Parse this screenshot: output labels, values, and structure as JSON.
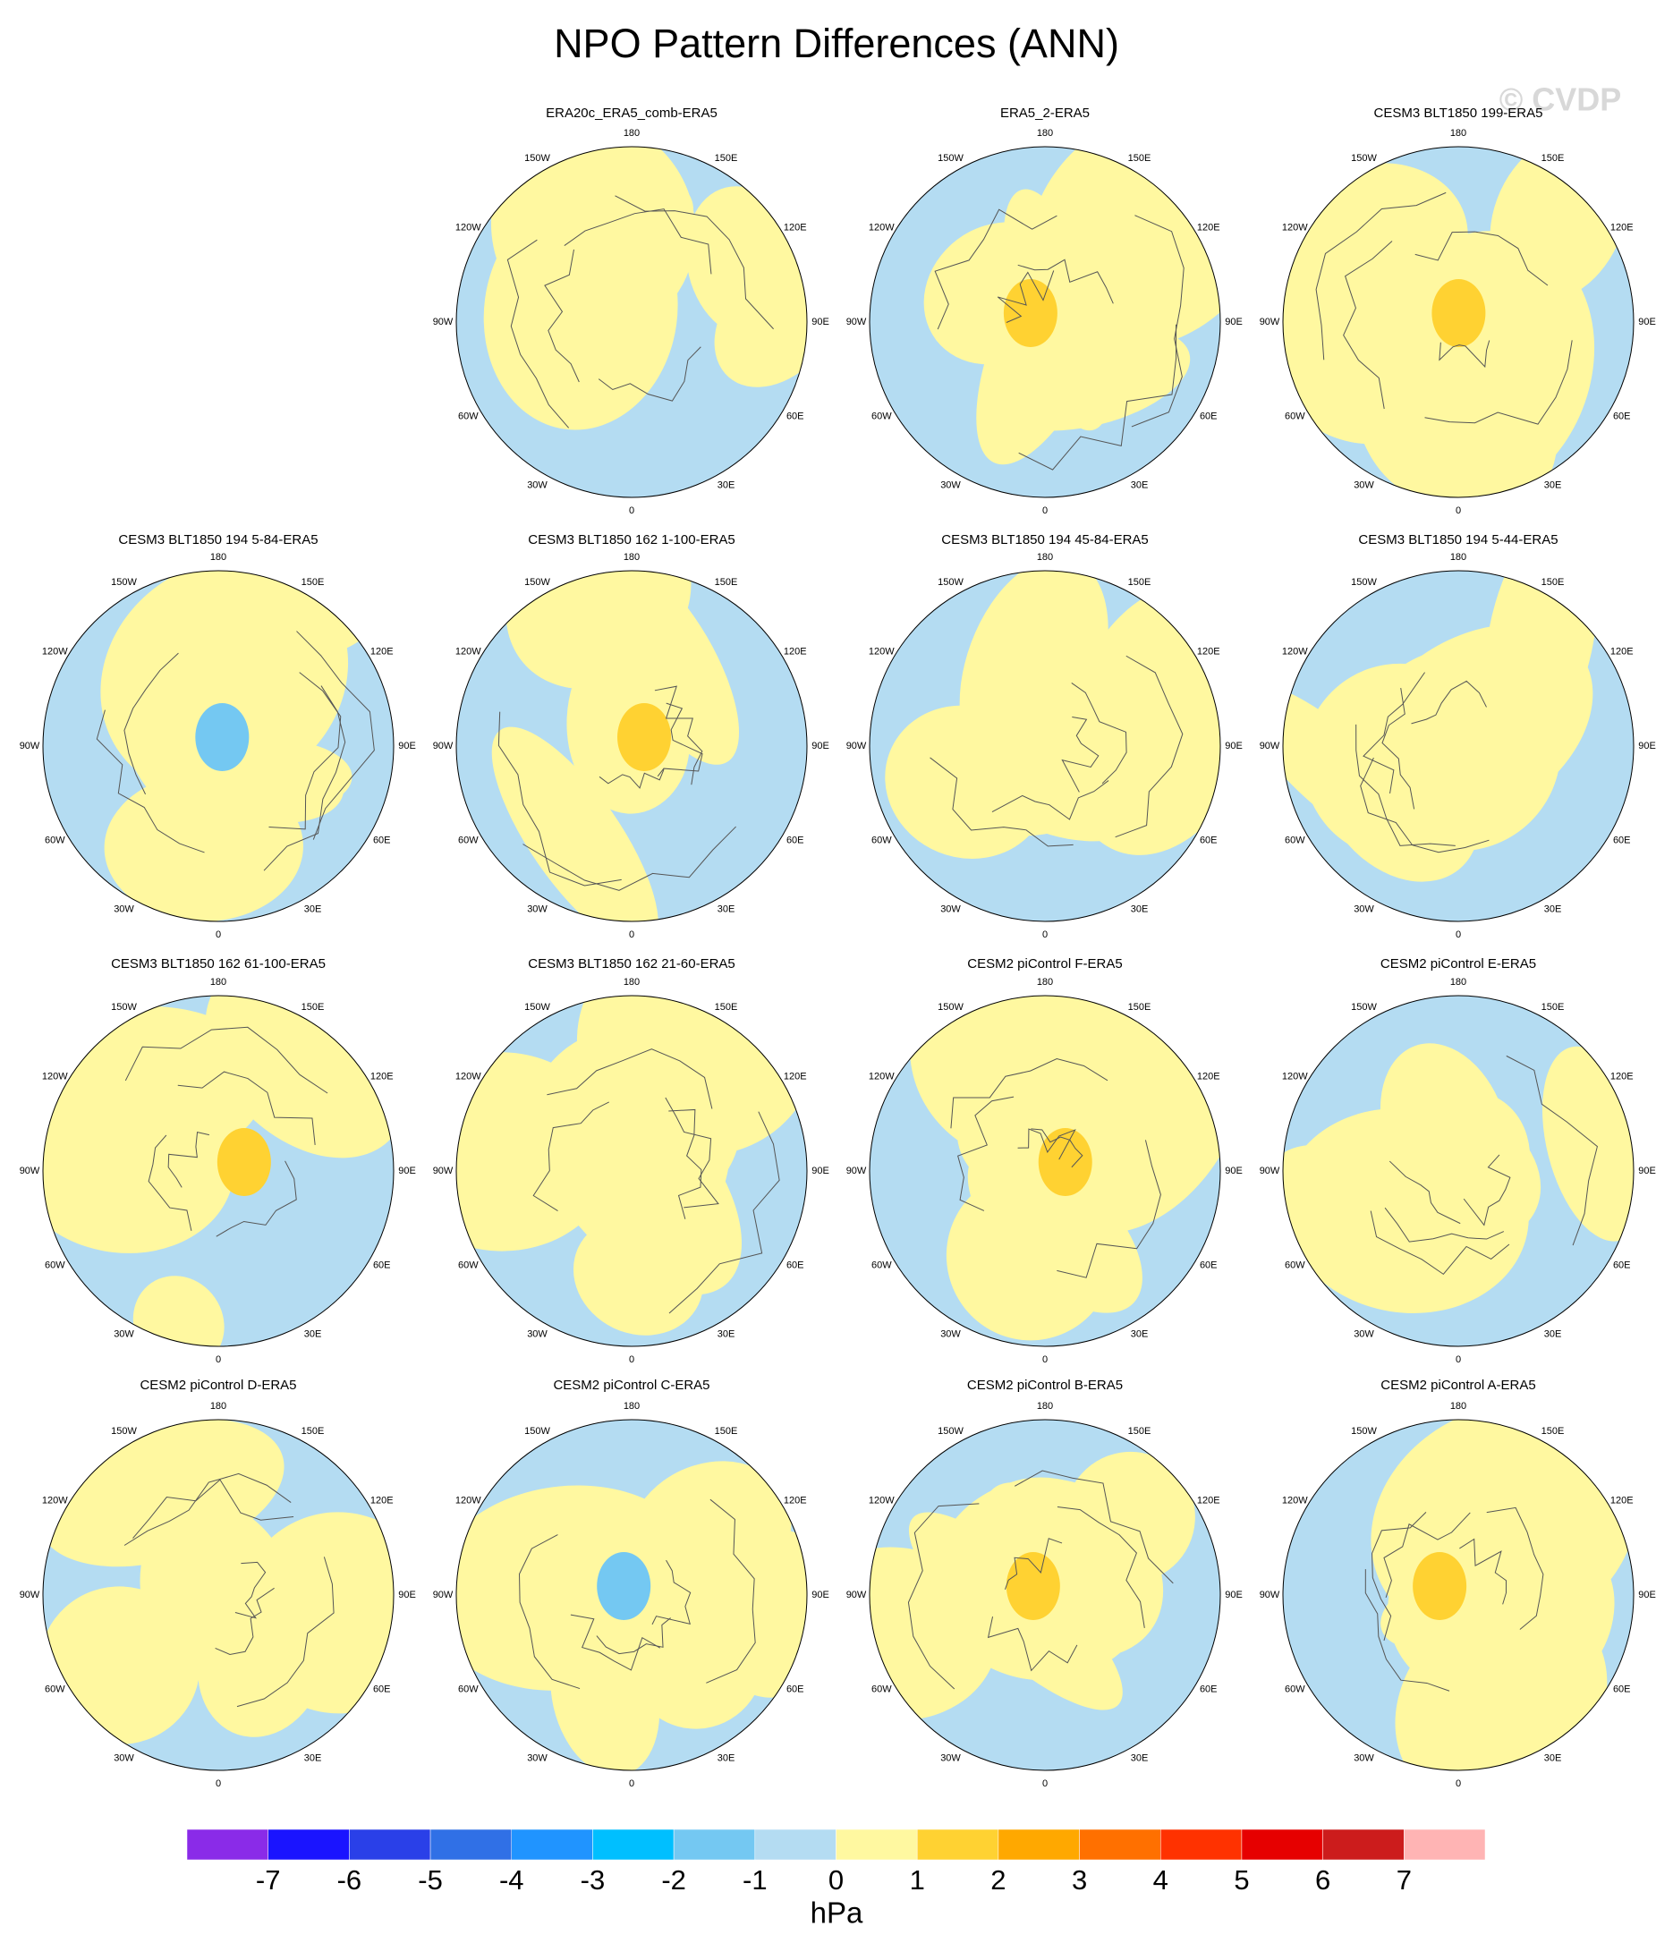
{
  "title": "NPO Pattern Differences (ANN)",
  "watermark": "© CVDP",
  "panels": [
    {
      "title": "ERA20c_ERA5_comb-ERA5"
    },
    {
      "title": "ERA5_2-ERA5"
    },
    {
      "title": "CESM3 BLT1850 199-ERA5"
    },
    {
      "title": "CESM3 BLT1850 194 5-84-ERA5"
    },
    {
      "title": "CESM3 BLT1850 162 1-100-ERA5"
    },
    {
      "title": "CESM3 BLT1850 194 45-84-ERA5"
    },
    {
      "title": "CESM3 BLT1850 194 5-44-ERA5"
    },
    {
      "title": "CESM3 BLT1850 162 61-100-ERA5"
    },
    {
      "title": "CESM3 BLT1850 162 21-60-ERA5"
    },
    {
      "title": "CESM2 piControl F-ERA5"
    },
    {
      "title": "CESM2 piControl E-ERA5"
    },
    {
      "title": "CESM2 piControl D-ERA5"
    },
    {
      "title": "CESM2 piControl C-ERA5"
    },
    {
      "title": "CESM2 piControl B-ERA5"
    },
    {
      "title": "CESM2 piControl A-ERA5"
    }
  ],
  "lon_labels": [
    "180",
    "150E",
    "120E",
    "90E",
    "60E",
    "30E",
    "0",
    "30W",
    "60W",
    "90W",
    "120W",
    "150W"
  ],
  "colorbar": {
    "colors": [
      "#8a2be8",
      "#1a14ff",
      "#2a40e8",
      "#3070e6",
      "#2094ff",
      "#00bfff",
      "#74c8f2",
      "#b4dcf2",
      "#fff8a0",
      "#ffd232",
      "#ffa800",
      "#ff7000",
      "#ff3200",
      "#e60000",
      "#cc1c1c",
      "#ffb4b4"
    ],
    "ticks": [
      -7,
      -6,
      -5,
      -4,
      -3,
      -2,
      -1,
      0,
      1,
      2,
      3,
      4,
      5,
      6,
      7
    ],
    "units": "hPa"
  }
}
